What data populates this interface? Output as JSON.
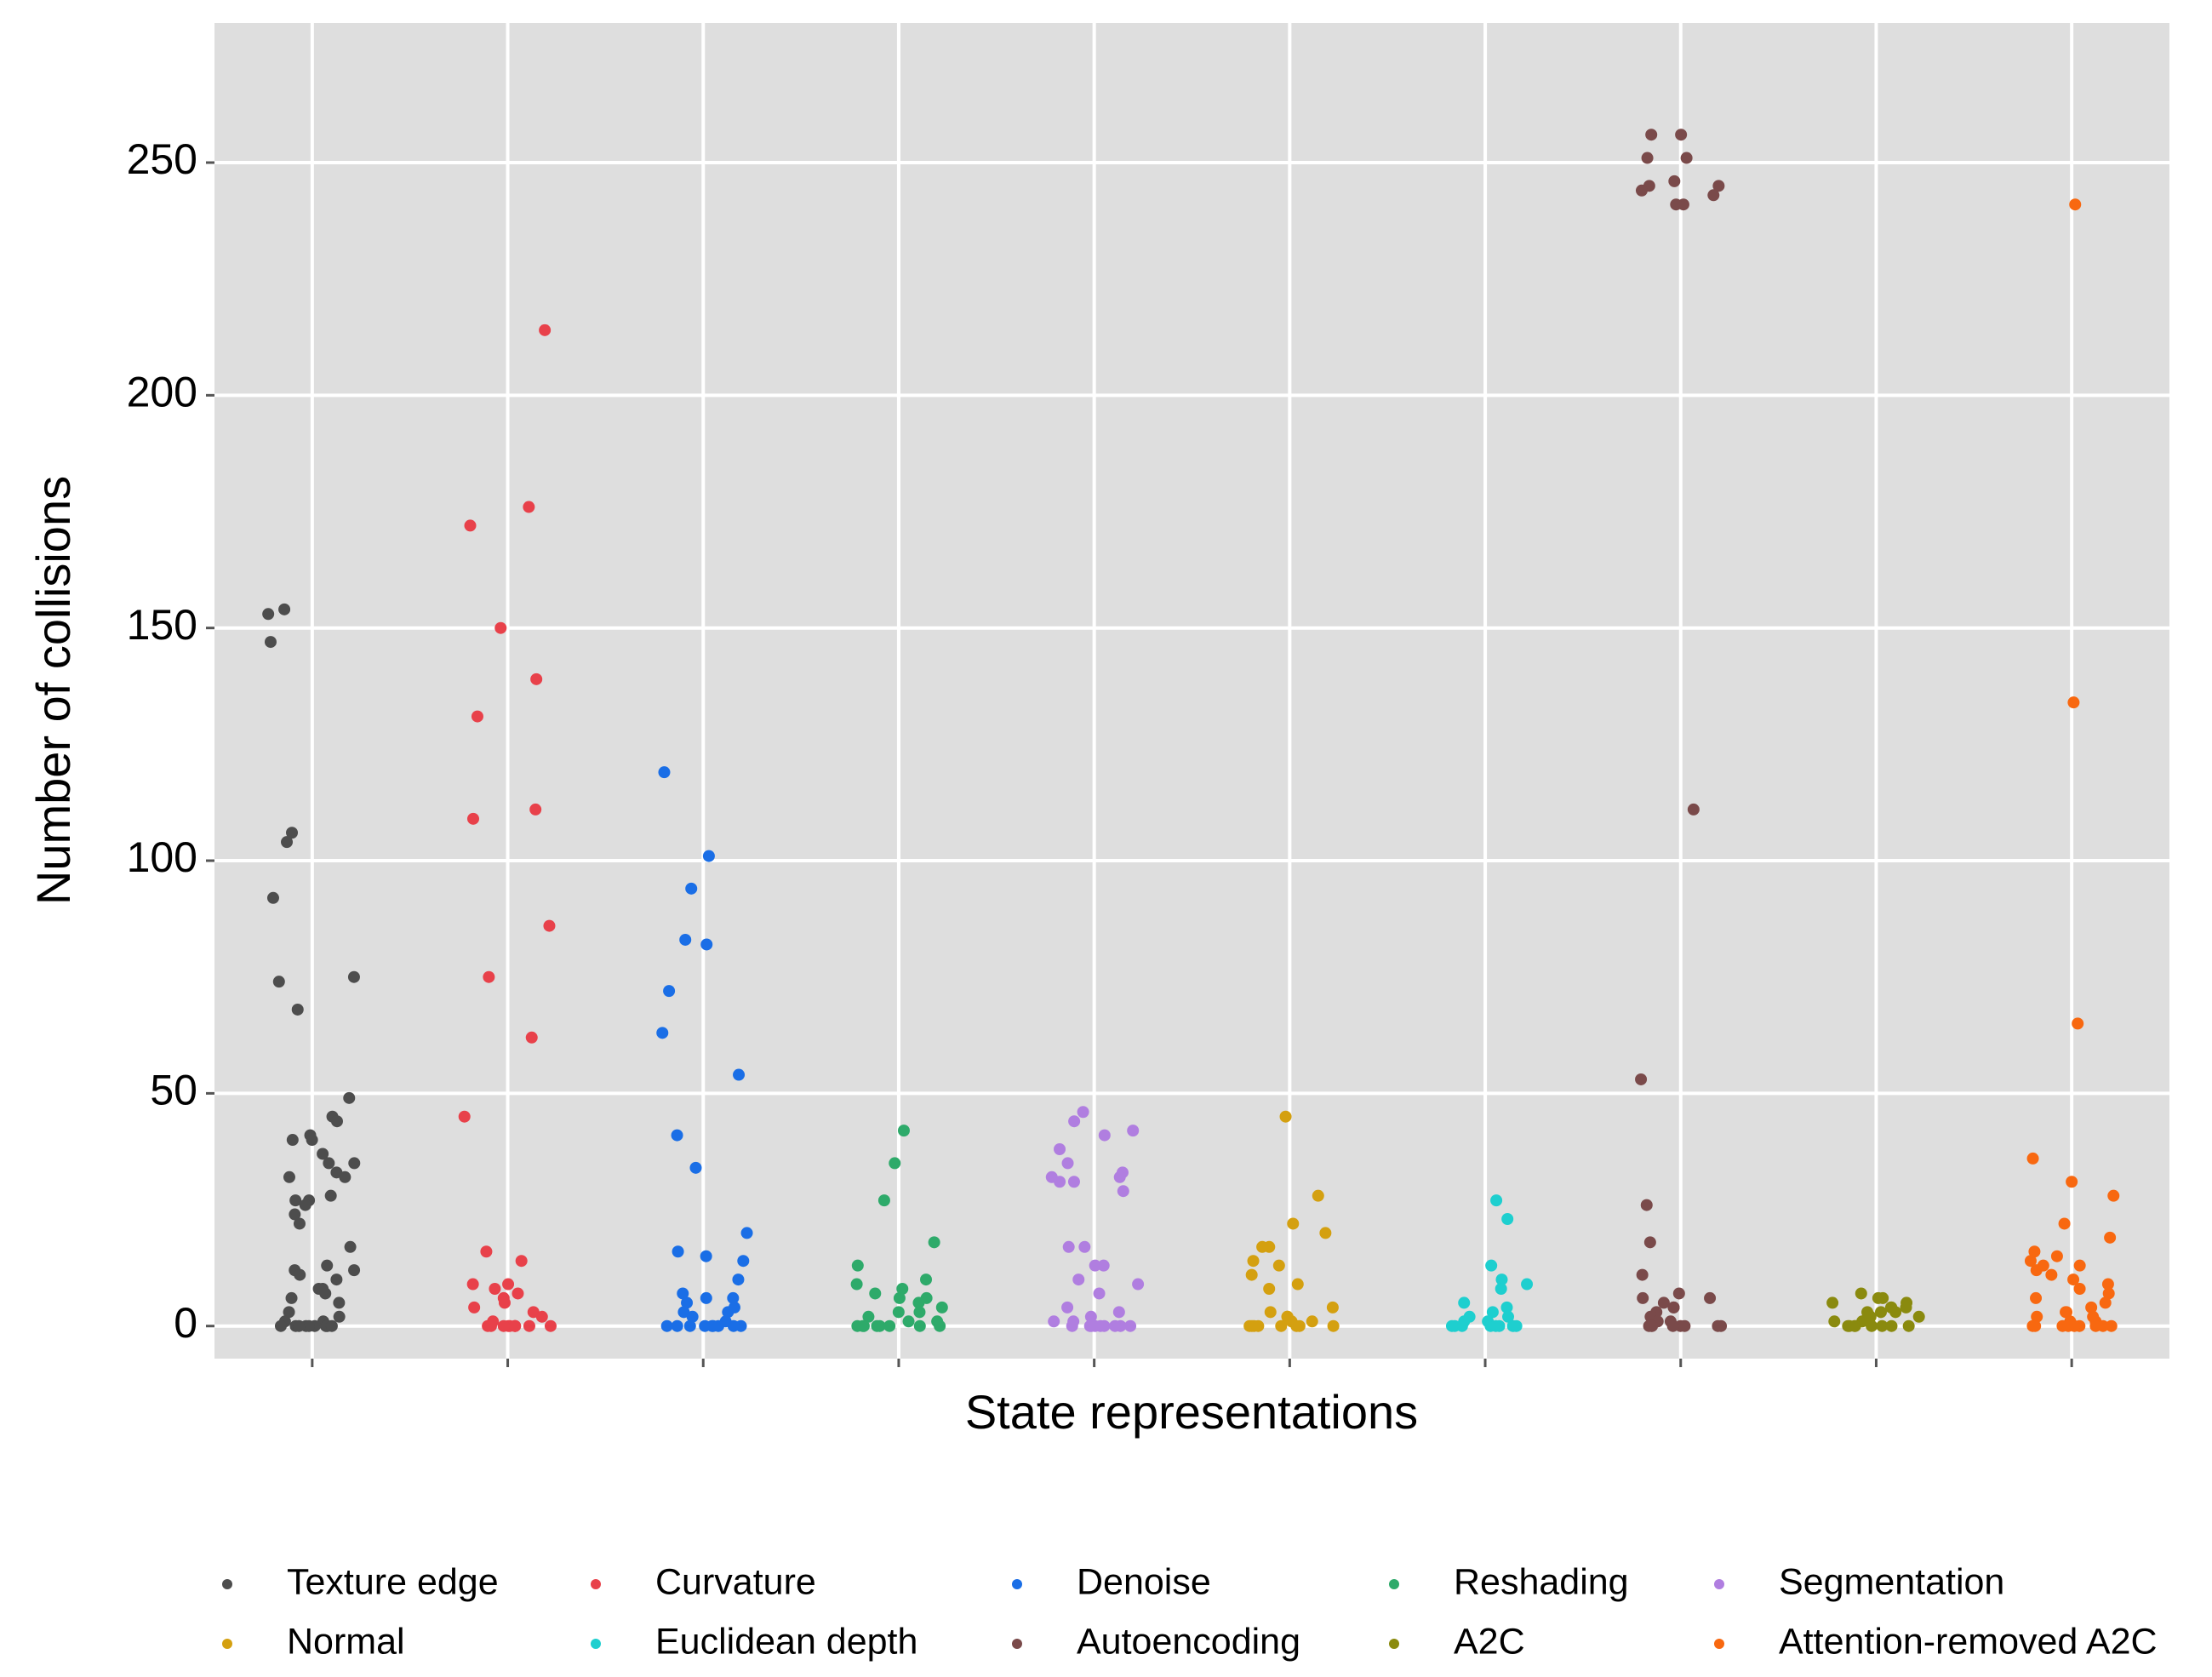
{
  "chart_data": {
    "type": "strip",
    "x_label": "State representations",
    "y_label": "Number of collisions",
    "ylim": [
      -7,
      280
    ],
    "yticks": [
      0,
      50,
      100,
      150,
      200,
      250
    ],
    "grid": true,
    "legend_position": "bottom",
    "series": [
      {
        "name": "Texture edge",
        "color": "#4d4d4d",
        "values": [
          153,
          154,
          147,
          106,
          104,
          92,
          75,
          74,
          68,
          49,
          45,
          44,
          41,
          40,
          40,
          37,
          35,
          35,
          33,
          32,
          32,
          28,
          27,
          27,
          26,
          24,
          22,
          17,
          13,
          12,
          12,
          11,
          10,
          8,
          8,
          7,
          6,
          5,
          3,
          2,
          1,
          1,
          0,
          0,
          0,
          0,
          0,
          0,
          0,
          0,
          0,
          0
        ]
      },
      {
        "name": "Curvature",
        "color": "#e8414a",
        "values": [
          214,
          176,
          172,
          150,
          139,
          131,
          111,
          109,
          86,
          75,
          62,
          45,
          16,
          14,
          9,
          9,
          8,
          7,
          6,
          5,
          4,
          3,
          2,
          1,
          0,
          0,
          0,
          0,
          0,
          0,
          0,
          0,
          0,
          0
        ]
      },
      {
        "name": "Denoise",
        "color": "#1a6ee6",
        "values": [
          119,
          101,
          94,
          83,
          82,
          72,
          63,
          54,
          41,
          34,
          20,
          16,
          15,
          14,
          10,
          7,
          6,
          6,
          5,
          4,
          3,
          3,
          2,
          1,
          0,
          0,
          0,
          0,
          0,
          0,
          0,
          0,
          0
        ]
      },
      {
        "name": "Reshading",
        "color": "#2eaa6a",
        "values": [
          42,
          35,
          27,
          18,
          13,
          10,
          9,
          8,
          7,
          6,
          6,
          5,
          4,
          3,
          3,
          2,
          1,
          1,
          0,
          0,
          0,
          0,
          0,
          0,
          0,
          0
        ]
      },
      {
        "name": "Segmentation",
        "color": "#b07ee0",
        "values": [
          46,
          44,
          42,
          41,
          38,
          35,
          33,
          32,
          32,
          31,
          31,
          29,
          17,
          17,
          13,
          13,
          10,
          9,
          7,
          4,
          3,
          2,
          1,
          1,
          0,
          0,
          0,
          0,
          0,
          0,
          0,
          0,
          0
        ]
      },
      {
        "name": "Normal",
        "color": "#d4a010",
        "values": [
          45,
          28,
          22,
          20,
          17,
          17,
          14,
          13,
          11,
          9,
          8,
          4,
          3,
          2,
          2,
          1,
          1,
          0,
          0,
          0,
          0,
          0,
          0,
          0,
          0
        ]
      },
      {
        "name": "Euclidean depth",
        "color": "#1ecfcf",
        "values": [
          27,
          23,
          13,
          10,
          9,
          8,
          5,
          4,
          3,
          2,
          2,
          1,
          1,
          0,
          0,
          0,
          0,
          0,
          0,
          0,
          0
        ]
      },
      {
        "name": "Autoencoding",
        "color": "#7a4a4a",
        "values": [
          256,
          256,
          251,
          251,
          246,
          245,
          245,
          244,
          243,
          241,
          241,
          111,
          53,
          26,
          18,
          11,
          7,
          6,
          6,
          5,
          4,
          4,
          3,
          2,
          2,
          1,
          1,
          0,
          0,
          0,
          0,
          0,
          0,
          0,
          0
        ]
      },
      {
        "name": "A2C",
        "color": "#8a8a0e",
        "values": [
          7,
          6,
          6,
          5,
          5,
          4,
          4,
          4,
          3,
          3,
          3,
          2,
          2,
          2,
          1,
          1,
          1,
          0,
          0,
          0,
          0,
          0,
          0,
          0,
          0
        ]
      },
      {
        "name": "Attention-removed A2C",
        "color": "#f86810",
        "values": [
          241,
          134,
          65,
          36,
          31,
          28,
          22,
          19,
          16,
          15,
          14,
          13,
          13,
          12,
          11,
          10,
          9,
          8,
          7,
          6,
          5,
          4,
          3,
          3,
          2,
          2,
          1,
          1,
          0,
          0,
          0,
          0,
          0,
          0,
          0,
          0,
          0
        ]
      }
    ]
  }
}
